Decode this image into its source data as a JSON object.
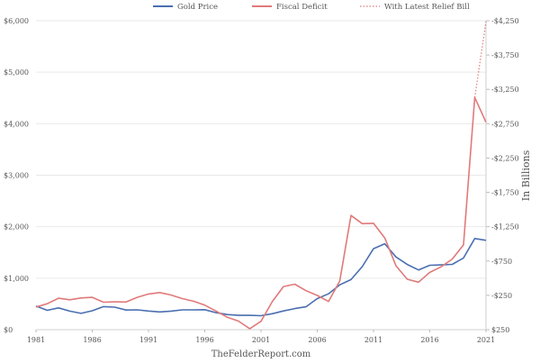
{
  "chart_data": {
    "type": "line",
    "source_label": "TheFelderReport.com",
    "y2label": "In Billions",
    "legend": {
      "placement": "top-center",
      "items": [
        {
          "label": "Gold Price",
          "color": "#4a6fb0",
          "style": "solid"
        },
        {
          "label": "Fiscal Deficit",
          "color": "#e07a7a",
          "style": "solid"
        },
        {
          "label": "With Latest Relief Bill",
          "color": "#e07a7a",
          "style": "dotted"
        }
      ]
    },
    "x_ticks": [
      "1981",
      "1986",
      "1991",
      "1996",
      "2001",
      "2006",
      "2011",
      "2016",
      "2021"
    ],
    "xlim": [
      1981,
      2021
    ],
    "y_left": {
      "ticks": [
        0,
        1000,
        2000,
        3000,
        4000,
        5000,
        6000
      ],
      "tick_labels": [
        "$0",
        "$1,000",
        "$2,000",
        "$3,000",
        "$4,000",
        "$5,000",
        "$6,000"
      ],
      "ylim": [
        0,
        6000
      ]
    },
    "y_right": {
      "ticks": [
        250,
        -250,
        -750,
        -1250,
        -1750,
        -2250,
        -2750,
        -3250,
        -3750,
        -4250
      ],
      "tick_labels": [
        "$250",
        "-$250",
        "-$750",
        "-$1,250",
        "-$1,750",
        "-$2,250",
        "-$2,750",
        "-$3,250",
        "-$3,750",
        "-$4,250"
      ],
      "ylim": [
        250,
        -4250
      ]
    },
    "series": [
      {
        "name": "Gold Price",
        "axis": "left",
        "color": "#4a6fb0",
        "style": "solid",
        "x": [
          1981,
          1982,
          1983,
          1984,
          1985,
          1986,
          1987,
          1988,
          1989,
          1990,
          1991,
          1992,
          1993,
          1994,
          1995,
          1996,
          1997,
          1998,
          1999,
          2000,
          2001,
          2002,
          2003,
          2004,
          2005,
          2006,
          2007,
          2008,
          2009,
          2010,
          2011,
          2012,
          2013,
          2014,
          2015,
          2016,
          2017,
          2018,
          2019,
          2020,
          2021
        ],
        "values": [
          460,
          376,
          424,
          361,
          317,
          368,
          447,
          437,
          381,
          384,
          362,
          344,
          360,
          384,
          384,
          388,
          331,
          294,
          279,
          279,
          271,
          310,
          363,
          410,
          445,
          604,
          696,
          872,
          972,
          1225,
          1572,
          1669,
          1411,
          1266,
          1160,
          1251,
          1257,
          1268,
          1393,
          1770,
          1735
        ]
      },
      {
        "name": "Fiscal Deficit",
        "axis": "right",
        "color": "#e07a7a",
        "style": "solid",
        "x": [
          1981,
          1982,
          1983,
          1984,
          1985,
          1986,
          1987,
          1988,
          1989,
          1990,
          1991,
          1992,
          1993,
          1994,
          1995,
          1996,
          1997,
          1998,
          1999,
          2000,
          2001,
          2002,
          2003,
          2004,
          2005,
          2006,
          2007,
          2008,
          2009,
          2010,
          2011,
          2012,
          2013,
          2014,
          2015,
          2016,
          2017,
          2018,
          2019,
          2020,
          2021
        ],
        "values": [
          -79,
          -128,
          -208,
          -185,
          -212,
          -221,
          -150,
          -155,
          -153,
          -221,
          -269,
          -290,
          -255,
          -203,
          -164,
          -107,
          -22,
          69,
          126,
          236,
          128,
          -158,
          -378,
          -413,
          -318,
          -248,
          -161,
          -459,
          -1413,
          -1294,
          -1300,
          -1087,
          -680,
          -485,
          -442,
          -585,
          -665,
          -779,
          -984,
          -3132,
          -2772
        ]
      },
      {
        "name": "With Latest Relief Bill",
        "axis": "right",
        "color": "#e07a7a",
        "style": "dotted",
        "x": [
          2020,
          2021
        ],
        "values": [
          -3132,
          -4240
        ]
      }
    ]
  }
}
